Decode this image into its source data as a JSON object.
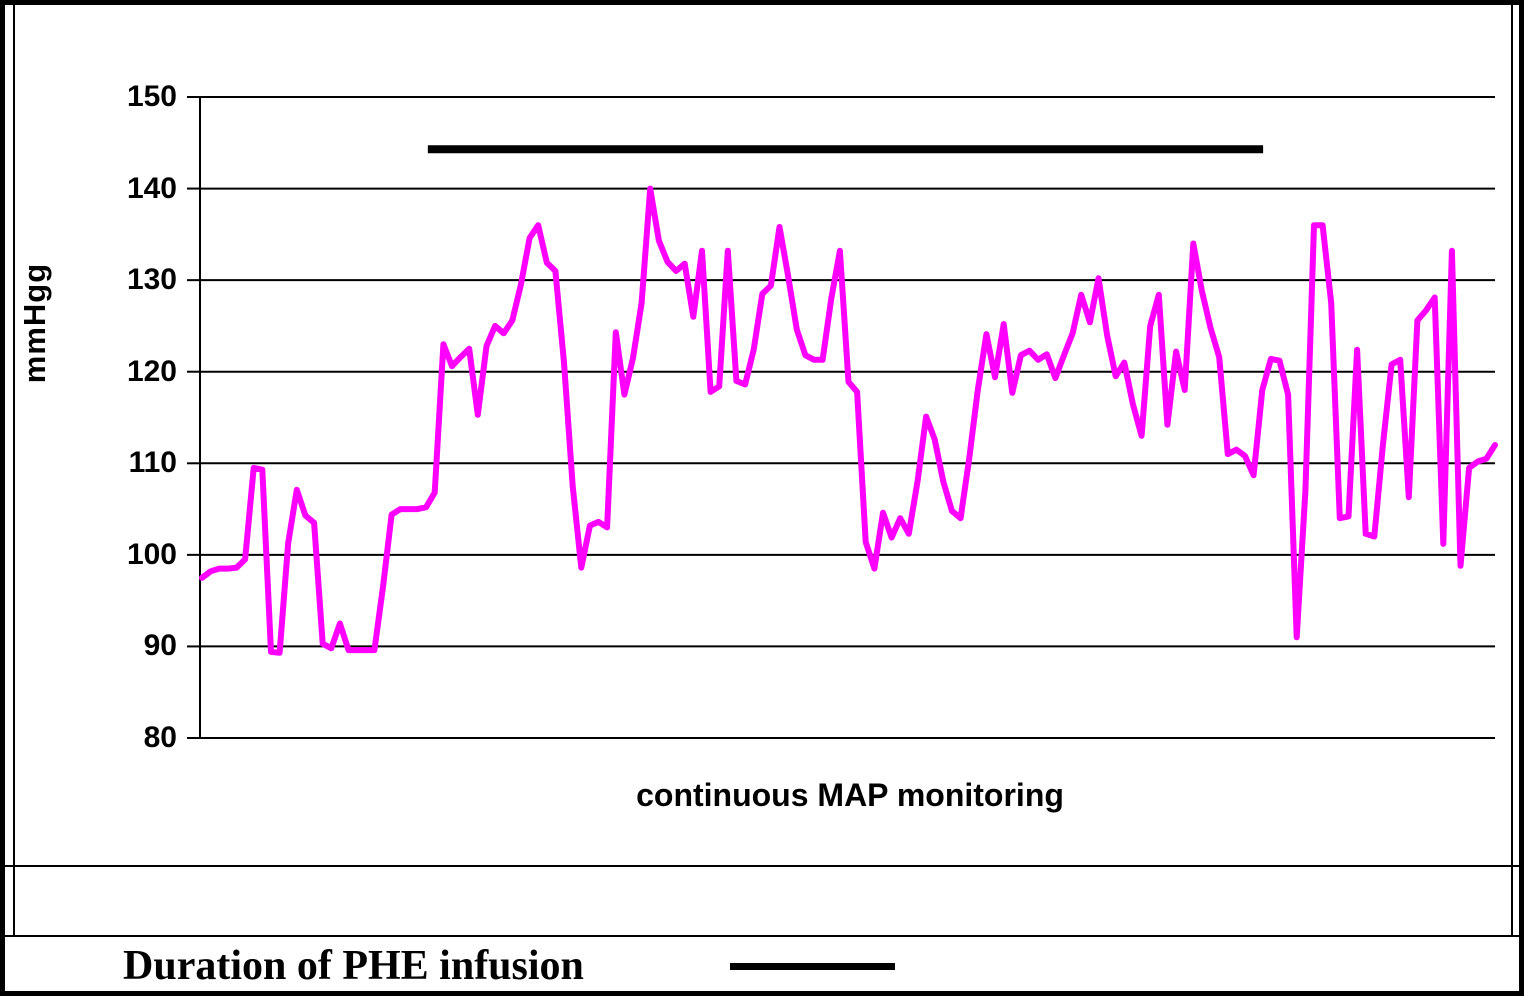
{
  "figure": {
    "y_axis_title": "mmHgg",
    "x_axis_title": "continuous MAP monitoring",
    "legend_label": "Duration of PHE infusion"
  },
  "colors": {
    "series_line": "#FF00FF",
    "grid_and_text": "#000000",
    "background": "#FFFFFF"
  },
  "chart_data": {
    "type": "line",
    "title": "",
    "xlabel": "continuous MAP monitoring",
    "ylabel": "mmHgg",
    "ylim": [
      80,
      150
    ],
    "yticks": [
      150,
      140,
      130,
      120,
      110,
      100,
      90,
      80
    ],
    "xticks": [],
    "grid": "horizontal",
    "legend_position": "bottom-band",
    "series": [
      {
        "name": "continuous MAP (mmHg)",
        "color": "#FF00FF",
        "values": [
          97.5,
          98.2,
          98.5,
          98.5,
          98.6,
          99.5,
          109.5,
          109.3,
          89.4,
          89.3,
          101.3,
          107.1,
          104.3,
          103.5,
          90.3,
          89.8,
          92.5,
          89.6,
          89.6,
          89.6,
          89.6,
          96.5,
          104.4,
          105,
          105,
          105,
          105.2,
          106.8,
          123,
          120.6,
          121.6,
          122.5,
          115.3,
          122.8,
          125,
          124.2,
          125.6,
          129.5,
          134.6,
          136,
          131.9,
          131,
          121,
          107.5,
          98.6,
          103.2,
          103.6,
          103,
          124.3,
          117.5,
          121.5,
          127.5,
          140,
          134.3,
          132,
          131,
          131.8,
          126,
          133.2,
          117.8,
          118.4,
          133.2,
          119,
          118.6,
          122.4,
          128.5,
          129.4,
          135.8,
          130.4,
          124.6,
          121.8,
          121.3,
          121.3,
          128,
          133.2,
          118.9,
          117.8,
          101.4,
          98.5,
          104.6,
          101.9,
          104,
          102.3,
          108,
          115.1,
          112.6,
          108,
          104.8,
          104,
          110.5,
          118,
          124.1,
          119.4,
          125.2,
          117.7,
          121.8,
          122.3,
          121.3,
          121.9,
          119.3,
          121.8,
          124.2,
          128.4,
          125.4,
          130.2,
          124,
          119.5,
          121,
          116.4,
          113,
          125,
          128.4,
          114.2,
          122.2,
          118,
          134,
          128.8,
          124.8,
          121.6,
          111,
          111.5,
          110.8,
          108.7,
          118,
          121.4,
          121.2,
          117.5,
          91,
          107,
          136,
          136,
          127.5,
          104,
          104.2,
          122.4,
          102.3,
          102,
          112,
          120.8,
          121.3,
          106.3,
          125.6,
          126.7,
          128.1,
          101.2,
          133.2,
          98.8,
          109.5,
          110.2,
          110.5,
          112
        ]
      }
    ],
    "annotations": [
      {
        "name": "PHE infusion duration bar",
        "type": "horizontal-bar",
        "y_value": 144.3,
        "x_from_index": 26.2,
        "x_to_index": 123.1,
        "color": "#000000"
      }
    ]
  }
}
